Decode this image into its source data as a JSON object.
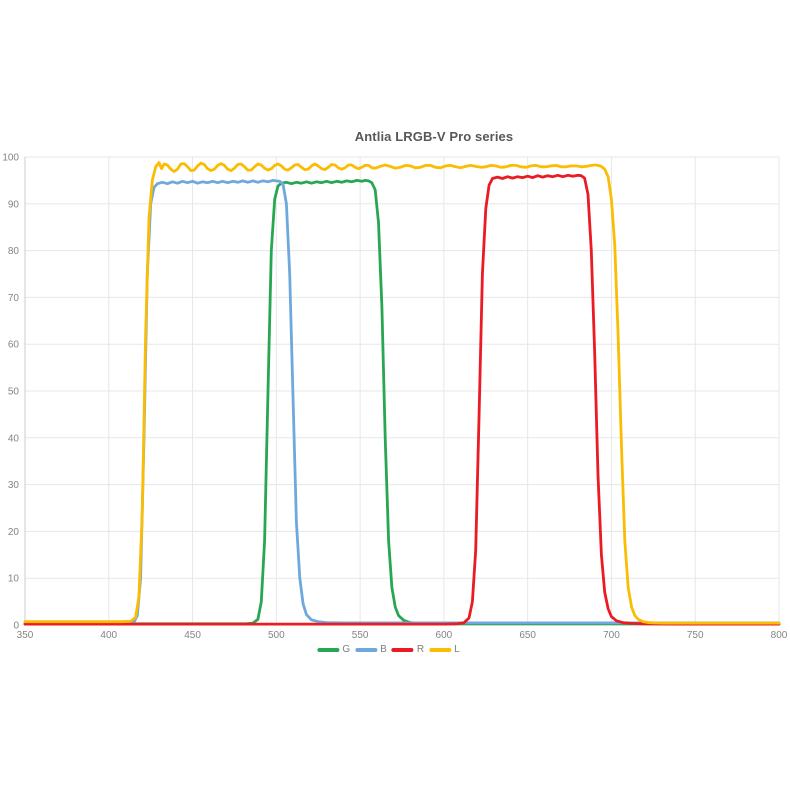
{
  "chart_data": {
    "type": "line",
    "title": "Antlia LRGB-V Pro series",
    "xlabel": "",
    "ylabel": "",
    "xlim": [
      350,
      800
    ],
    "ylim": [
      0,
      100
    ],
    "x_ticks": [
      350,
      400,
      450,
      500,
      550,
      600,
      650,
      700,
      750,
      800
    ],
    "y_ticks": [
      0,
      10,
      20,
      30,
      40,
      50,
      60,
      70,
      80,
      90,
      100
    ],
    "grid": true,
    "legend_position": "bottom",
    "colors": {
      "grid": "#e7e7e7",
      "axis": "#cccccc",
      "tick_text": "#848484",
      "title_text": "#56585b",
      "background": "#ffffff"
    },
    "series": [
      {
        "name": "G",
        "color": "#28a652",
        "points": [
          [
            350,
            0.25
          ],
          [
            380,
            0.25
          ],
          [
            410,
            0.25
          ],
          [
            440,
            0.25
          ],
          [
            470,
            0.25
          ],
          [
            482,
            0.25
          ],
          [
            486,
            0.4
          ],
          [
            489,
            1.2
          ],
          [
            491,
            5
          ],
          [
            493,
            18
          ],
          [
            495,
            50
          ],
          [
            497,
            80
          ],
          [
            499,
            91
          ],
          [
            501,
            93.8
          ],
          [
            503,
            94.4
          ],
          [
            506,
            94.6
          ],
          [
            509,
            94.3
          ],
          [
            512,
            94.6
          ],
          [
            515,
            94.4
          ],
          [
            518,
            94.7
          ],
          [
            521,
            94.4
          ],
          [
            524,
            94.7
          ],
          [
            527,
            94.5
          ],
          [
            530,
            94.8
          ],
          [
            533,
            94.5
          ],
          [
            536,
            94.8
          ],
          [
            539,
            94.6
          ],
          [
            542,
            94.9
          ],
          [
            545,
            94.7
          ],
          [
            548,
            95.0
          ],
          [
            551,
            94.8
          ],
          [
            553,
            95.0
          ],
          [
            555,
            94.9
          ],
          [
            557,
            94.5
          ],
          [
            559,
            93
          ],
          [
            561,
            86
          ],
          [
            563,
            68
          ],
          [
            565,
            40
          ],
          [
            567,
            18
          ],
          [
            569,
            8
          ],
          [
            571,
            3.8
          ],
          [
            573,
            2
          ],
          [
            576,
            1
          ],
          [
            580,
            0.5
          ],
          [
            586,
            0.3
          ],
          [
            600,
            0.25
          ],
          [
            630,
            0.25
          ],
          [
            660,
            0.25
          ],
          [
            700,
            0.25
          ],
          [
            750,
            0.25
          ],
          [
            800,
            0.25
          ]
        ]
      },
      {
        "name": "B",
        "color": "#6fa8dc",
        "points": [
          [
            350,
            0.3
          ],
          [
            370,
            0.3
          ],
          [
            390,
            0.3
          ],
          [
            405,
            0.3
          ],
          [
            412,
            0.3
          ],
          [
            415,
            0.6
          ],
          [
            417,
            2
          ],
          [
            419,
            10
          ],
          [
            421,
            40
          ],
          [
            423,
            75
          ],
          [
            425,
            90
          ],
          [
            427,
            93.5
          ],
          [
            429,
            94.3
          ],
          [
            432,
            94.6
          ],
          [
            435,
            94.3
          ],
          [
            438,
            94.7
          ],
          [
            441,
            94.4
          ],
          [
            444,
            94.8
          ],
          [
            447,
            94.5
          ],
          [
            450,
            94.8
          ],
          [
            453,
            94.4
          ],
          [
            456,
            94.7
          ],
          [
            459,
            94.5
          ],
          [
            462,
            94.8
          ],
          [
            465,
            94.5
          ],
          [
            468,
            94.8
          ],
          [
            471,
            94.5
          ],
          [
            474,
            94.8
          ],
          [
            477,
            94.6
          ],
          [
            480,
            94.9
          ],
          [
            483,
            94.6
          ],
          [
            486,
            94.9
          ],
          [
            489,
            94.6
          ],
          [
            492,
            94.9
          ],
          [
            495,
            94.7
          ],
          [
            498,
            95.0
          ],
          [
            500,
            94.9
          ],
          [
            502,
            94.8
          ],
          [
            504,
            94.2
          ],
          [
            506,
            90
          ],
          [
            508,
            75
          ],
          [
            510,
            48
          ],
          [
            512,
            22
          ],
          [
            514,
            10
          ],
          [
            516,
            4.5
          ],
          [
            518,
            2.2
          ],
          [
            521,
            1.1
          ],
          [
            525,
            0.7
          ],
          [
            530,
            0.5
          ],
          [
            540,
            0.45
          ],
          [
            560,
            0.45
          ],
          [
            580,
            0.45
          ],
          [
            600,
            0.45
          ],
          [
            630,
            0.45
          ],
          [
            660,
            0.45
          ],
          [
            690,
            0.45
          ],
          [
            720,
            0.45
          ],
          [
            750,
            0.45
          ],
          [
            775,
            0.45
          ],
          [
            800,
            0.45
          ]
        ]
      },
      {
        "name": "R",
        "color": "#ea1b22",
        "points": [
          [
            350,
            0.2
          ],
          [
            390,
            0.2
          ],
          [
            430,
            0.2
          ],
          [
            470,
            0.2
          ],
          [
            510,
            0.2
          ],
          [
            550,
            0.2
          ],
          [
            580,
            0.2
          ],
          [
            600,
            0.2
          ],
          [
            608,
            0.25
          ],
          [
            612,
            0.5
          ],
          [
            615,
            1.5
          ],
          [
            617,
            5
          ],
          [
            619,
            16
          ],
          [
            621,
            45
          ],
          [
            623,
            75
          ],
          [
            625,
            89
          ],
          [
            627,
            94
          ],
          [
            629,
            95.4
          ],
          [
            632,
            95.7
          ],
          [
            635,
            95.4
          ],
          [
            638,
            95.8
          ],
          [
            641,
            95.5
          ],
          [
            644,
            95.8
          ],
          [
            647,
            95.6
          ],
          [
            650,
            95.9
          ],
          [
            653,
            95.6
          ],
          [
            656,
            96.0
          ],
          [
            659,
            95.7
          ],
          [
            662,
            96.0
          ],
          [
            665,
            95.8
          ],
          [
            668,
            96.1
          ],
          [
            671,
            95.8
          ],
          [
            674,
            96.1
          ],
          [
            677,
            95.9
          ],
          [
            680,
            96.1
          ],
          [
            682,
            96.0
          ],
          [
            684,
            95.5
          ],
          [
            686,
            92
          ],
          [
            688,
            80
          ],
          [
            690,
            58
          ],
          [
            692,
            32
          ],
          [
            694,
            15
          ],
          [
            696,
            7
          ],
          [
            698,
            3.5
          ],
          [
            700,
            1.8
          ],
          [
            703,
            0.9
          ],
          [
            707,
            0.5
          ],
          [
            712,
            0.35
          ],
          [
            720,
            0.25
          ],
          [
            740,
            0.2
          ],
          [
            770,
            0.2
          ],
          [
            800,
            0.2
          ]
        ]
      },
      {
        "name": "L",
        "color": "#fbbc04",
        "points": [
          [
            350,
            0.7
          ],
          [
            368,
            0.7
          ],
          [
            386,
            0.7
          ],
          [
            400,
            0.7
          ],
          [
            408,
            0.7
          ],
          [
            413,
            0.8
          ],
          [
            416,
            1.6
          ],
          [
            418,
            6
          ],
          [
            420,
            24
          ],
          [
            422,
            62
          ],
          [
            424,
            87
          ],
          [
            426,
            95
          ],
          [
            428,
            97.9
          ],
          [
            430,
            98.8
          ],
          [
            431.5,
            97.5
          ],
          [
            433,
            98.5
          ],
          [
            435,
            98.3
          ],
          [
            437,
            97.4
          ],
          [
            439,
            96.9
          ],
          [
            441,
            97.4
          ],
          [
            443,
            98.5
          ],
          [
            445,
            98.6
          ],
          [
            447,
            97.9
          ],
          [
            449,
            97.1
          ],
          [
            451,
            97.2
          ],
          [
            453,
            98.1
          ],
          [
            455,
            98.7
          ],
          [
            457,
            98.4
          ],
          [
            459,
            97.5
          ],
          [
            461,
            97.1
          ],
          [
            463,
            97.4
          ],
          [
            465,
            98.2
          ],
          [
            467,
            98.6
          ],
          [
            469,
            98.2
          ],
          [
            471,
            97.4
          ],
          [
            473,
            97.1
          ],
          [
            475,
            97.6
          ],
          [
            477,
            98.4
          ],
          [
            479,
            98.5
          ],
          [
            481,
            97.9
          ],
          [
            483,
            97.2
          ],
          [
            485,
            97.2
          ],
          [
            487,
            97.9
          ],
          [
            489,
            98.5
          ],
          [
            491,
            98.3
          ],
          [
            493,
            97.6
          ],
          [
            495,
            97.2
          ],
          [
            497,
            97.5
          ],
          [
            499,
            98.2
          ],
          [
            501,
            98.5
          ],
          [
            503,
            98.1
          ],
          [
            505,
            97.4
          ],
          [
            507,
            97.2
          ],
          [
            509,
            97.7
          ],
          [
            511,
            98.3
          ],
          [
            513,
            98.4
          ],
          [
            515,
            97.8
          ],
          [
            517,
            97.3
          ],
          [
            519,
            97.4
          ],
          [
            521,
            98.1
          ],
          [
            523,
            98.5
          ],
          [
            525,
            98.1
          ],
          [
            527,
            97.5
          ],
          [
            529,
            97.3
          ],
          [
            531,
            97.8
          ],
          [
            533,
            98.4
          ],
          [
            535,
            98.3
          ],
          [
            537,
            97.7
          ],
          [
            539,
            97.4
          ],
          [
            541,
            97.7
          ],
          [
            543,
            98.3
          ],
          [
            545,
            98.3
          ],
          [
            547,
            97.8
          ],
          [
            549,
            97.5
          ],
          [
            551,
            97.8
          ],
          [
            553,
            98.2
          ],
          [
            555,
            98.2
          ],
          [
            557,
            97.7
          ],
          [
            559,
            97.6
          ],
          [
            562,
            98.0
          ],
          [
            565,
            98.3
          ],
          [
            568,
            98.0
          ],
          [
            571,
            97.6
          ],
          [
            574,
            97.8
          ],
          [
            577,
            98.2
          ],
          [
            580,
            98.1
          ],
          [
            583,
            97.7
          ],
          [
            586,
            97.8
          ],
          [
            589,
            98.2
          ],
          [
            592,
            98.2
          ],
          [
            595,
            97.8
          ],
          [
            598,
            97.7
          ],
          [
            601,
            98.1
          ],
          [
            604,
            98.2
          ],
          [
            607,
            97.9
          ],
          [
            610,
            97.7
          ],
          [
            613,
            98.0
          ],
          [
            616,
            98.2
          ],
          [
            619,
            98.0
          ],
          [
            622,
            97.8
          ],
          [
            625,
            97.9
          ],
          [
            628,
            98.2
          ],
          [
            631,
            98.1
          ],
          [
            634,
            97.8
          ],
          [
            637,
            97.9
          ],
          [
            640,
            98.2
          ],
          [
            643,
            98.2
          ],
          [
            646,
            97.9
          ],
          [
            649,
            97.8
          ],
          [
            652,
            98.1
          ],
          [
            655,
            98.2
          ],
          [
            658,
            97.9
          ],
          [
            661,
            97.9
          ],
          [
            664,
            98.1
          ],
          [
            667,
            98.2
          ],
          [
            670,
            97.9
          ],
          [
            673,
            97.9
          ],
          [
            676,
            98.1
          ],
          [
            679,
            98.1
          ],
          [
            682,
            97.9
          ],
          [
            685,
            98.0
          ],
          [
            688,
            98.2
          ],
          [
            690,
            98.3
          ],
          [
            692,
            98.2
          ],
          [
            694,
            98.0
          ],
          [
            696,
            97.4
          ],
          [
            698,
            95.8
          ],
          [
            700,
            91
          ],
          [
            702,
            81
          ],
          [
            704,
            62
          ],
          [
            706,
            38
          ],
          [
            708,
            18
          ],
          [
            710,
            8
          ],
          [
            712,
            3.8
          ],
          [
            714,
            2
          ],
          [
            716,
            1.2
          ],
          [
            719,
            0.7
          ],
          [
            723,
            0.5
          ],
          [
            730,
            0.4
          ],
          [
            745,
            0.4
          ],
          [
            760,
            0.4
          ],
          [
            775,
            0.4
          ],
          [
            790,
            0.4
          ],
          [
            800,
            0.4
          ]
        ]
      }
    ]
  }
}
